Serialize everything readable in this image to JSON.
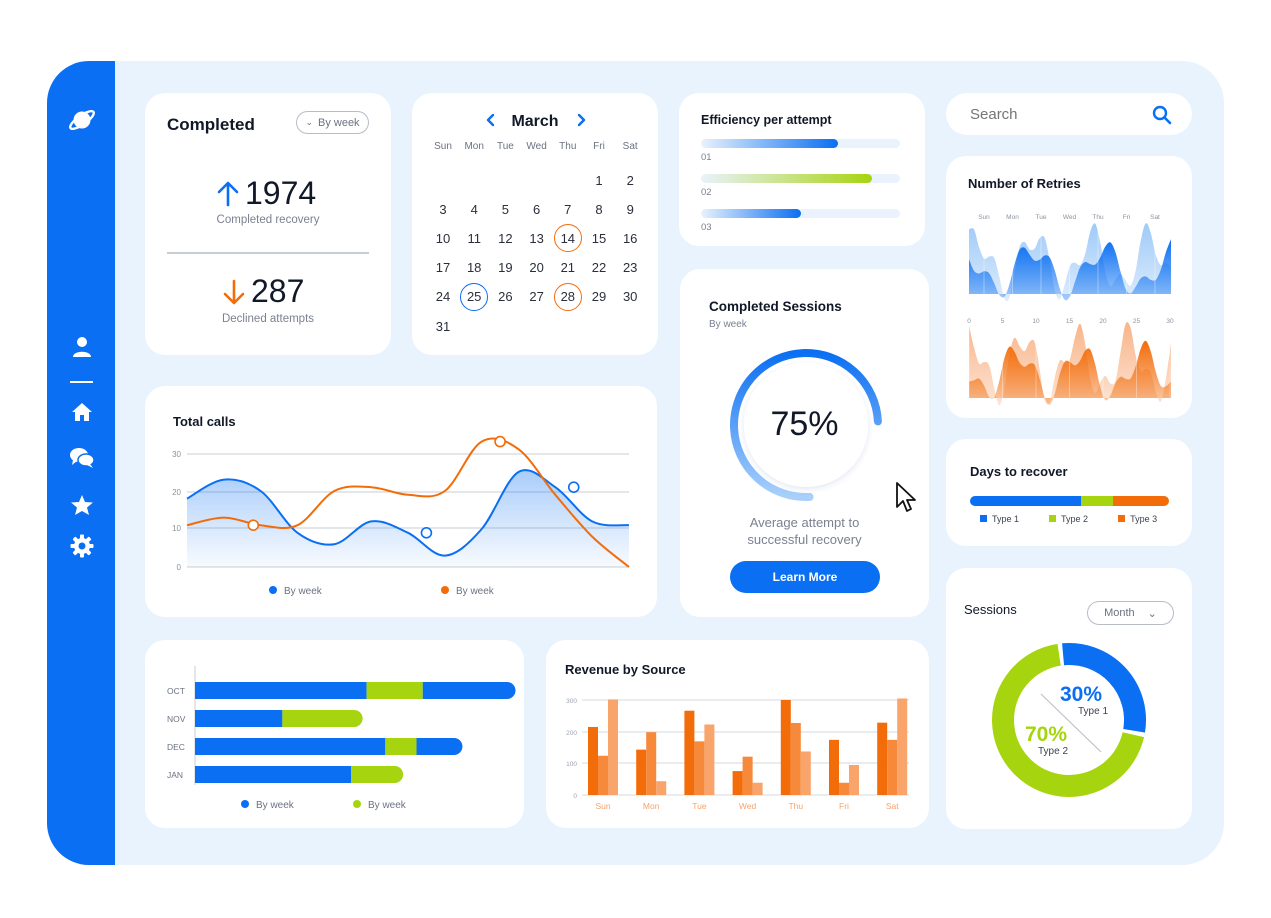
{
  "sidebar": {
    "icons": [
      "planet-logo-icon",
      "user-icon",
      "home-icon",
      "chat-icon",
      "star-icon",
      "settings-icon"
    ]
  },
  "completed": {
    "title": "Completed",
    "filter": "By week",
    "recovery_value": "1974",
    "recovery_label": "Completed recovery",
    "declined_value": "287",
    "declined_label": "Declined attempts"
  },
  "calendar": {
    "month": "March",
    "weekdays": [
      "Sun",
      "Mon",
      "Tue",
      "Wed",
      "Thu",
      "Fri",
      "Sat"
    ],
    "first_weekday": 5,
    "days_in_month": 31,
    "marked_orange": [
      14,
      28
    ],
    "marked_blue": [
      25
    ]
  },
  "efficiency": {
    "title": "Efficiency per attempt",
    "bars": [
      {
        "label": "01",
        "percent": 69,
        "color": "#0a6ff2"
      },
      {
        "label": "02",
        "percent": 86,
        "color": "#a6d40f"
      },
      {
        "label": "03",
        "percent": 50,
        "color": "#0a6ff2"
      }
    ]
  },
  "sessions_gauge": {
    "title": "Completed Sessions",
    "subtitle": "By week",
    "value": "75%",
    "percent": 75,
    "caption_line1": "Average attempt to",
    "caption_line2": "successful recovery",
    "button": "Learn More"
  },
  "search": {
    "placeholder": "Search"
  },
  "retries": {
    "title": "Number of Retries",
    "top_ticks": [
      "Sun",
      "Mon",
      "Tue",
      "Wed",
      "Thu",
      "Fri",
      "Sat"
    ],
    "bottom_ticks": [
      "0",
      "5",
      "10",
      "15",
      "20",
      "25",
      "30"
    ]
  },
  "days_to_recover": {
    "title": "Days to recover",
    "segments": [
      {
        "name": "Type 1",
        "share": 0.56,
        "color": "#0a6ff2"
      },
      {
        "name": "Type 2",
        "share": 0.16,
        "color": "#a6d40f"
      },
      {
        "name": "Type 3",
        "share": 0.28,
        "color": "#f26c0a"
      }
    ]
  },
  "total_calls": {
    "title": "Total calls",
    "legend": [
      "By week",
      "By week"
    ]
  },
  "sessions_donut": {
    "title": "Sessions",
    "filter": "Month",
    "type1_value": "30%",
    "type1_label": "Type 1",
    "type2_value": "70%",
    "type2_label": "Type 2"
  },
  "months_bar": {
    "legend": [
      "By week",
      "By week"
    ]
  },
  "revenue": {
    "title": "Revenue by Source"
  },
  "chart_data": [
    {
      "id": "total_calls",
      "type": "line",
      "title": "Total calls",
      "ylim": [
        0,
        30
      ],
      "yticks": [
        "30",
        "20",
        "10",
        "0"
      ],
      "x": [
        0,
        1,
        2,
        3,
        4,
        5,
        6,
        7,
        8,
        9,
        10,
        11,
        12
      ],
      "series": [
        {
          "name": "By week",
          "color": "#0a6ff2",
          "values": [
            18,
            23,
            20,
            9,
            6,
            12,
            9,
            3,
            10,
            25,
            21,
            12,
            11
          ]
        },
        {
          "name": "By week",
          "color": "#f26c0a",
          "values": [
            11,
            13,
            11,
            11,
            20,
            21,
            19,
            20,
            33,
            31,
            19,
            8,
            0
          ]
        }
      ],
      "markers": [
        {
          "series": 0,
          "x": 6.5,
          "y": 9
        },
        {
          "series": 0,
          "x": 10.5,
          "y": 21
        },
        {
          "series": 1,
          "x": 1.8,
          "y": 11
        },
        {
          "series": 1,
          "x": 8.5,
          "y": 33
        }
      ],
      "grid": true
    },
    {
      "id": "months_bar",
      "type": "bar",
      "orientation": "horizontal",
      "stacked": true,
      "categories": [
        "OCT",
        "NOV",
        "DEC",
        "JAN"
      ],
      "series": [
        {
          "name": "By week",
          "color": "#0a6ff2",
          "values": [
            [
              0,
              55
            ],
            [
              0,
              28
            ],
            [
              0,
              61
            ],
            [
              0,
              50
            ]
          ]
        },
        {
          "name": "By week",
          "color": "#a6d40f",
          "values": [
            [
              55,
              73
            ],
            [
              28,
              51
            ],
            [
              61,
              71
            ],
            [
              50,
              64
            ]
          ]
        },
        {
          "name": "By week",
          "color": "#0a6ff2",
          "values": [
            [
              73,
              100
            ],
            null,
            [
              71,
              83
            ],
            null
          ]
        }
      ]
    },
    {
      "id": "revenue",
      "type": "bar",
      "title": "Revenue by Source",
      "categories": [
        "Sun",
        "Mon",
        "Tue",
        "Wed",
        "Thu",
        "Fri",
        "Sat"
      ],
      "yticks": [
        "300",
        "200",
        "100",
        "0"
      ],
      "ylim": [
        0,
        310
      ],
      "series": [
        {
          "color": "#f26c0a",
          "values": [
            222,
            148,
            275,
            78,
            310,
            180,
            236
          ]
        },
        {
          "color": "#f7893a",
          "values": [
            128,
            205,
            175,
            125,
            235,
            40,
            180
          ]
        },
        {
          "color": "#f8a46a",
          "values": [
            312,
            45,
            230,
            40,
            142,
            98,
            315
          ]
        }
      ],
      "grid": true
    },
    {
      "id": "sessions_donut",
      "type": "pie",
      "title": "Sessions",
      "values": [
        {
          "name": "Type 1",
          "value": 30,
          "color": "#0a6ff2"
        },
        {
          "name": "Type 2",
          "value": 70,
          "color": "#a6d40f"
        }
      ]
    },
    {
      "id": "retries_top",
      "type": "area",
      "categories": [
        "Sun",
        "Mon",
        "Tue",
        "Wed",
        "Thu",
        "Fri",
        "Sat"
      ],
      "colors": [
        "#0a6ff2",
        "#9fcaf8"
      ]
    },
    {
      "id": "retries_bottom",
      "type": "area",
      "categories": [
        "0",
        "5",
        "10",
        "15",
        "20",
        "25",
        "30"
      ],
      "colors": [
        "#f26c0a",
        "#f9b488"
      ]
    }
  ]
}
